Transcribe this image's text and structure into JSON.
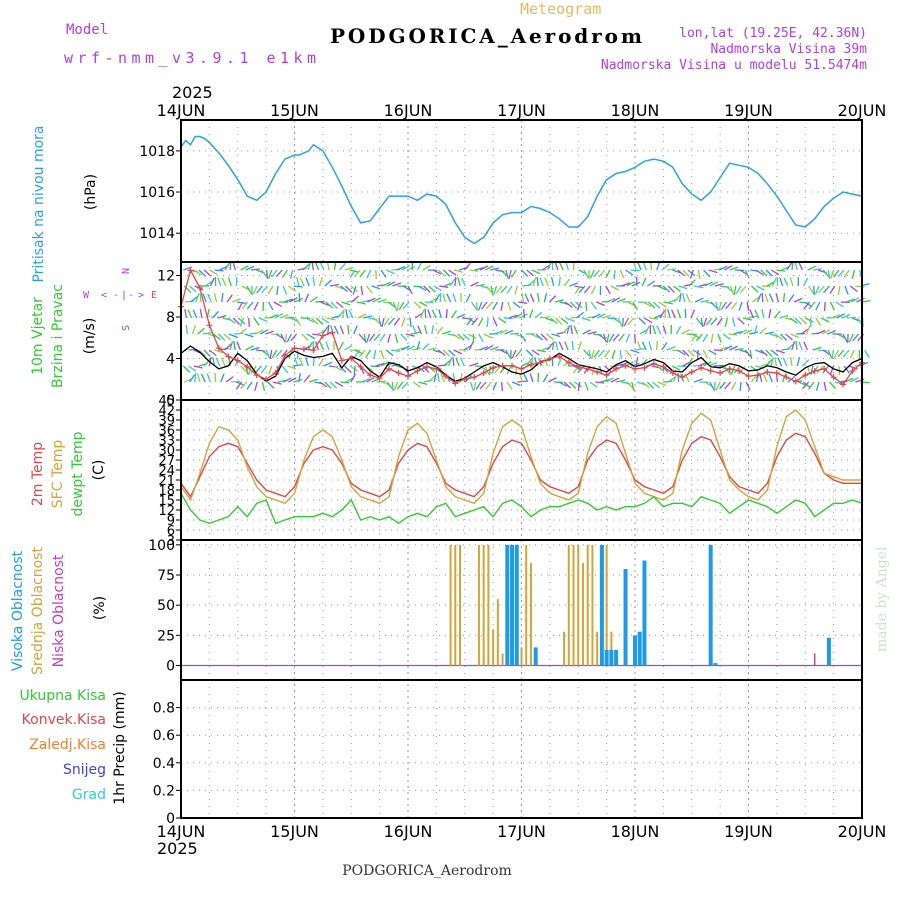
{
  "header": {
    "model_label": "Model",
    "model_name": "wrf-nmm_v3.9.1 e1km",
    "product": "Meteogram",
    "station": "PODGORICA_Aerodrom",
    "lonlat": "lon,lat (19.25E, 42.36N)",
    "elevation": "Nadmorska Visina 39m",
    "model_elevation": "Nadmorska Visina u modelu 51.5474m",
    "footer_station": "PODGORICA_Aerodrom",
    "watermark": "made by Angel"
  },
  "colors": {
    "pressure": "#29a3e6",
    "temp2m": "#e0484a",
    "sfc_temp": "#d4a43a",
    "dewpoint": "#33cc33",
    "high_cloud": "#1e9be8",
    "mid_cloud": "#d4a43a",
    "low_cloud": "#c040c0",
    "purple": "#b040e0",
    "wind_speed": "#000000"
  },
  "chart_data": [
    {
      "type": "line",
      "id": "pressure",
      "ylabel_left": "Pritisak na nivou mora",
      "ylabel_unit": "(hPa)",
      "ylim": [
        1012.6,
        1019.5
      ],
      "yticks": [
        1014,
        1016,
        1018
      ],
      "x_unit": "hours since 14 JUN 00 UTC",
      "xlim": [
        0,
        144
      ],
      "top_axis_year": "2025",
      "x_tick_labels": [
        "14JUN",
        "15JUN",
        "16JUN",
        "17JUN",
        "18JUN",
        "19JUN",
        "20JUN"
      ],
      "x": [
        0,
        1,
        2,
        3,
        4,
        5,
        6,
        8,
        10,
        12,
        14,
        16,
        18,
        20,
        22,
        24,
        25,
        26,
        27,
        28,
        30,
        32,
        34,
        36,
        38,
        40,
        42,
        44,
        46,
        48,
        50,
        52,
        54,
        56,
        58,
        60,
        62,
        64,
        66,
        68,
        70,
        72,
        74,
        76,
        78,
        80,
        82,
        84,
        86,
        88,
        90,
        92,
        94,
        96,
        98,
        100,
        102,
        104,
        106,
        108,
        110,
        112,
        114,
        116,
        118,
        120,
        122,
        124,
        126,
        128,
        130,
        132,
        134,
        136,
        138,
        140,
        142,
        144
      ],
      "values": [
        1018.2,
        1018.5,
        1018.3,
        1018.7,
        1018.7,
        1018.6,
        1018.4,
        1017.9,
        1017.3,
        1016.6,
        1015.8,
        1015.6,
        1016.0,
        1016.9,
        1017.6,
        1017.8,
        1017.8,
        1017.9,
        1018.0,
        1018.3,
        1018.0,
        1017.2,
        1016.3,
        1015.3,
        1014.5,
        1014.6,
        1015.2,
        1015.8,
        1015.8,
        1015.8,
        1015.6,
        1015.9,
        1015.8,
        1015.4,
        1014.5,
        1013.8,
        1013.5,
        1013.8,
        1014.5,
        1014.9,
        1015.0,
        1015.0,
        1015.3,
        1015.2,
        1015.0,
        1014.7,
        1014.3,
        1014.3,
        1014.8,
        1015.8,
        1016.6,
        1016.9,
        1017.0,
        1017.2,
        1017.5,
        1017.6,
        1017.5,
        1017.2,
        1016.4,
        1015.9,
        1015.6,
        1016.0,
        1016.7,
        1017.4,
        1017.3,
        1017.2,
        1016.9,
        1016.4,
        1015.8,
        1015.1,
        1014.4,
        1014.3,
        1014.7,
        1015.3,
        1015.7,
        1016.0,
        1015.9,
        1015.8
      ]
    },
    {
      "type": "line",
      "id": "wind",
      "ylabel_left": "10m Vjetar",
      "ylabel_left2": "Brzina i Pravac",
      "ylabel_unit": "(m/s)",
      "compass": {
        "n": "N",
        "s": "S",
        "e": "E",
        "w": "W",
        "arrow_left": "<",
        "arrow_right": ">",
        "dash": "-",
        "pipe": "|"
      },
      "ylim": [
        0,
        13.3
      ],
      "yticks": [
        0,
        4,
        8,
        12
      ],
      "x_unit": "hours since 14 JUN 00 UTC",
      "xlim": [
        0,
        144
      ],
      "series": [
        {
          "line_color": "#000000",
          "x": [
            0,
            2,
            4,
            6,
            8,
            10,
            12,
            14,
            16,
            18,
            20,
            22,
            24,
            26,
            28,
            30,
            32,
            34,
            36,
            38,
            40,
            42,
            44,
            46,
            48,
            50,
            52,
            54,
            56,
            58,
            60,
            62,
            64,
            66,
            68,
            70,
            72,
            74,
            76,
            78,
            80,
            82,
            84,
            86,
            88,
            90,
            92,
            94,
            96,
            98,
            100,
            102,
            104,
            106,
            108,
            110,
            112,
            114,
            116,
            118,
            120,
            122,
            124,
            126,
            128,
            130,
            132,
            134,
            136,
            138,
            140,
            142,
            144
          ],
          "values": [
            4.5,
            5.2,
            4.6,
            3.7,
            3.0,
            3.3,
            4.5,
            3.8,
            2.5,
            1.8,
            2.3,
            4.0,
            4.7,
            4.3,
            4.1,
            4.2,
            4.5,
            3.1,
            4.2,
            3.8,
            2.8,
            2.2,
            3.6,
            3.4,
            2.8,
            3.1,
            3.6,
            3.2,
            2.4,
            1.8,
            2.1,
            2.7,
            3.3,
            3.6,
            3.2,
            2.7,
            2.5,
            2.9,
            3.7,
            3.9,
            4.5,
            4.0,
            3.4,
            3.2,
            3.0,
            2.7,
            3.4,
            3.8,
            3.2,
            3.5,
            3.9,
            3.6,
            2.8,
            2.7,
            3.6,
            4.1,
            3.2,
            3.1,
            3.5,
            3.3,
            2.8,
            2.9,
            3.3,
            3.1,
            2.7,
            2.4,
            3.1,
            3.5,
            3.6,
            3.0,
            2.7,
            3.6,
            4.0
          ]
        },
        {
          "line_color": "#e0484a",
          "marker": "+",
          "x": [
            0,
            2,
            4,
            6,
            8,
            10,
            12,
            14,
            16,
            18,
            20,
            22,
            24,
            26,
            28,
            30,
            32,
            34,
            36,
            38,
            40,
            42,
            44,
            46,
            48,
            50,
            52,
            54,
            56,
            58,
            60,
            62,
            64,
            66,
            68,
            70,
            72,
            74,
            76,
            78,
            80,
            82,
            84,
            86,
            88,
            90,
            92,
            94,
            96,
            98,
            100,
            102,
            104,
            106,
            108,
            110,
            112,
            114,
            116,
            118,
            120,
            122,
            124,
            126,
            128,
            130,
            132,
            134,
            136,
            138,
            140,
            142,
            144
          ],
          "values": [
            9.0,
            12.5,
            10.8,
            7.2,
            5.0,
            4.2,
            3.8,
            3.2,
            2.4,
            2.0,
            2.6,
            4.3,
            5.0,
            4.9,
            4.8,
            6.2,
            6.5,
            3.8,
            4.0,
            3.2,
            2.4,
            2.1,
            3.0,
            2.6,
            2.3,
            2.8,
            3.2,
            3.0,
            2.3,
            1.6,
            2.0,
            2.2,
            2.6,
            3.1,
            3.3,
            3.3,
            3.0,
            3.4,
            3.6,
            4.0,
            4.2,
            3.6,
            3.2,
            3.0,
            2.7,
            2.4,
            3.0,
            3.3,
            3.0,
            3.1,
            3.5,
            3.2,
            2.6,
            2.2,
            2.7,
            3.1,
            2.8,
            2.6,
            3.0,
            2.8,
            2.3,
            2.4,
            2.7,
            2.6,
            2.2,
            1.8,
            2.4,
            2.8,
            3.0,
            2.2,
            1.5,
            2.8,
            3.6
          ]
        }
      ]
    },
    {
      "type": "line",
      "id": "temperature",
      "ylabel_left": "2m Temp",
      "ylabel_left2": "SFC Temp",
      "ylabel_left3": "dewpt Temp",
      "ylabel_unit": "(C)",
      "ylim": [
        3,
        45
      ],
      "yticks": [
        3,
        6,
        9,
        12,
        15,
        18,
        21,
        24,
        27,
        30,
        33,
        36,
        39,
        42,
        45
      ],
      "x_unit": "hours since 14 JUN 00 UTC",
      "xlim": [
        0,
        144
      ],
      "x": [
        0,
        2,
        4,
        6,
        8,
        10,
        12,
        14,
        16,
        18,
        20,
        22,
        24,
        26,
        28,
        30,
        32,
        34,
        36,
        38,
        40,
        42,
        44,
        46,
        48,
        50,
        52,
        54,
        56,
        58,
        60,
        62,
        64,
        66,
        68,
        70,
        72,
        74,
        76,
        78,
        80,
        82,
        84,
        86,
        88,
        90,
        92,
        94,
        96,
        98,
        100,
        102,
        104,
        106,
        108,
        110,
        112,
        114,
        116,
        118,
        120,
        122,
        124,
        126,
        128,
        130,
        132,
        134,
        136,
        138,
        140,
        142,
        144
      ],
      "series": [
        {
          "name": "2m Temp",
          "values": [
            20,
            16,
            22,
            28,
            31,
            32,
            31,
            26,
            21,
            18,
            17,
            16,
            19,
            26,
            30,
            31,
            30,
            26,
            20,
            18,
            17,
            16,
            18,
            26,
            30,
            32,
            31,
            26,
            20,
            18,
            17,
            16,
            19,
            26,
            31,
            33,
            32,
            27,
            21,
            19,
            18,
            17,
            19,
            27,
            31,
            33,
            32,
            27,
            21,
            19,
            18,
            17,
            19,
            27,
            32,
            34,
            33,
            28,
            22,
            19,
            18,
            17,
            20,
            28,
            33,
            35,
            34,
            29,
            23,
            21,
            20,
            20,
            20
          ]
        },
        {
          "name": "SFC Temp",
          "values": [
            19,
            15,
            23,
            32,
            37,
            36,
            33,
            25,
            19,
            16,
            15,
            14,
            17,
            27,
            34,
            36,
            34,
            27,
            19,
            16,
            15,
            14,
            16,
            28,
            36,
            38,
            35,
            27,
            19,
            16,
            15,
            14,
            17,
            29,
            37,
            39,
            37,
            28,
            20,
            17,
            16,
            15,
            17,
            29,
            37,
            40,
            38,
            29,
            20,
            17,
            16,
            15,
            17,
            30,
            38,
            41,
            39,
            30,
            21,
            18,
            16,
            15,
            18,
            31,
            40,
            42,
            39,
            31,
            23,
            22,
            21,
            21,
            21
          ]
        },
        {
          "name": "dewpt Temp",
          "values": [
            17,
            12,
            9,
            8,
            9,
            10,
            13,
            10,
            14,
            15,
            8,
            9,
            10,
            10,
            10,
            11,
            10,
            12,
            15,
            9,
            10,
            9,
            10,
            8,
            10,
            11,
            10,
            13,
            14,
            10,
            11,
            12,
            13,
            10,
            14,
            15,
            13,
            10,
            12,
            13,
            13,
            14,
            15,
            14,
            12,
            13,
            12,
            13,
            13,
            14,
            16,
            13,
            14,
            14,
            13,
            16,
            15,
            14,
            11,
            13,
            15,
            14,
            13,
            11,
            13,
            15,
            14,
            10,
            12,
            14,
            14,
            15,
            14
          ]
        }
      ]
    },
    {
      "type": "bar",
      "id": "cloud",
      "ylabel_left": "Visoka Oblacnost",
      "ylabel_left2": "Srednja Oblacnost",
      "ylabel_left3": "Niska Oblacnost",
      "ylabel_unit": "(%)",
      "ylim": [
        -12,
        104
      ],
      "yticks": [
        0,
        25,
        50,
        75,
        100
      ],
      "x_unit": "hours since 14 JUN 00 UTC",
      "xlim": [
        0,
        144
      ],
      "series": [
        {
          "name": "Srednja Oblacnost",
          "x": [
            57,
            58,
            59,
            63,
            64,
            65,
            66,
            67,
            68,
            69,
            71,
            72,
            73,
            74,
            75,
            81,
            82,
            83,
            84,
            85,
            86,
            87,
            88,
            89,
            90,
            91
          ],
          "values": [
            100,
            100,
            100,
            100,
            100,
            100,
            30,
            55,
            10,
            15,
            15,
            15,
            100,
            85,
            15,
            28,
            100,
            100,
            100,
            85,
            100,
            100,
            28,
            13,
            100,
            28
          ]
        },
        {
          "name": "Visoka Oblacnost",
          "x": [
            69,
            70,
            71,
            75,
            89,
            90,
            91,
            92,
            94,
            96,
            97,
            98,
            112,
            113,
            137
          ],
          "values": [
            100,
            100,
            100,
            15,
            100,
            13,
            13,
            13,
            80,
            25,
            28,
            87,
            100,
            2,
            23
          ]
        },
        {
          "name": "Niska Oblacnost",
          "x": [
            134
          ],
          "values": [
            10
          ]
        }
      ]
    },
    {
      "type": "bar",
      "id": "precip",
      "legend": [
        "Ukupna Kisa",
        "Konvek.Kisa",
        "Zaledj.Kisa",
        "Snijeg",
        "Grad"
      ],
      "legend_colors": [
        "#33cc33",
        "#e0484a",
        "#f08030",
        "#4040e0",
        "#33cccc"
      ],
      "ylabel_unit": "1hr Precip (mm)",
      "ylim": [
        0,
        1.0
      ],
      "yticks": [
        0,
        0.2,
        0.4,
        0.6,
        0.8
      ],
      "ytick_labels": [
        "0",
        "0.2",
        "0.4",
        "0.6",
        "0.8"
      ],
      "x_unit": "hours since 14 JUN 00 UTC",
      "xlim": [
        0,
        144
      ],
      "bottom_axis_year": "2025",
      "x_tick_labels": [
        "14JUN",
        "15JUN",
        "16JUN",
        "17JUN",
        "18JUN",
        "19JUN",
        "20JUN"
      ],
      "x": [
        0,
        144
      ],
      "values": [
        0,
        0
      ]
    }
  ]
}
